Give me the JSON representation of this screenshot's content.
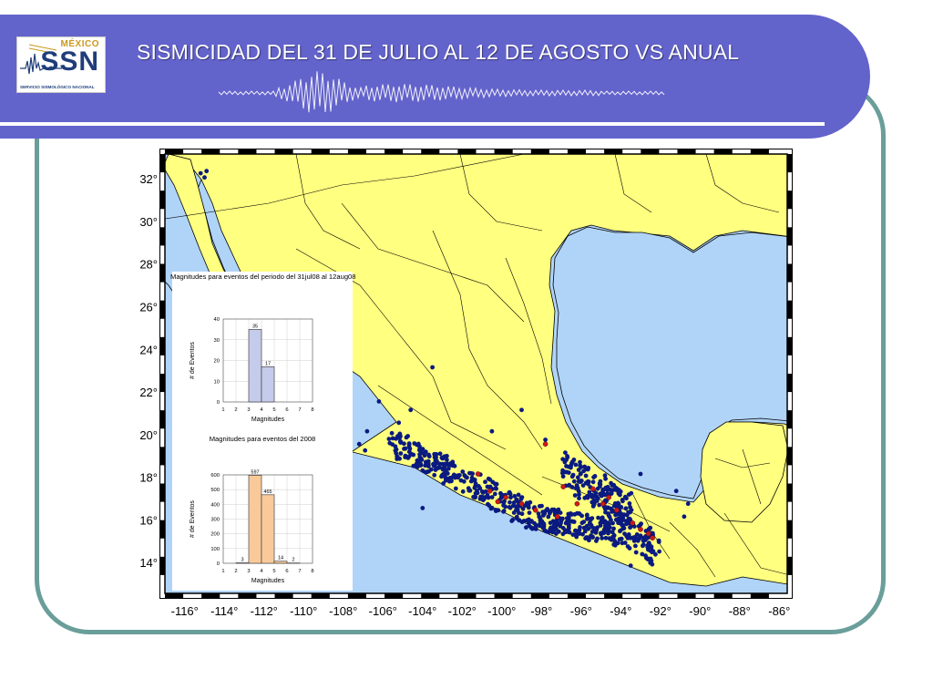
{
  "header": {
    "title": "SISMICIDAD DEL 31 DE JULIO AL 12 DE AGOSTO VS ANUAL",
    "logo": {
      "country": "MÉXICO",
      "acronym": "SSN",
      "name": "SERVICIO SISMOLÓGICO NACIONAL"
    },
    "colors": {
      "banner": "#6363cc",
      "frame": "#6a9e9a"
    }
  },
  "map": {
    "lon_range": [
      -116,
      -86
    ],
    "lat_range": [
      13,
      33
    ],
    "lat_labels": [
      "32°",
      "30°",
      "28°",
      "26°",
      "24°",
      "22°",
      "20°",
      "18°",
      "16°",
      "14°"
    ],
    "lon_labels": [
      "-116°",
      "-114°",
      "-112°",
      "-110°",
      "-108°",
      "-106°",
      "-104°",
      "-102°",
      "-100°",
      "-98°",
      "-96°",
      "-94°",
      "-92°",
      "-90°",
      "-88°",
      "-86°"
    ],
    "colors": {
      "land": "#ffff80",
      "ocean": "#b0d4f8",
      "annual_events": "#0a1a80",
      "period_events": "#cc1a1a"
    }
  },
  "chart_data": [
    {
      "type": "bar",
      "title": "Magnitudes para eventos del periodo del 31jul08 al 12aug08",
      "xlabel": "Magnitudes",
      "ylabel": "# de Eventos",
      "categories": [
        "3-4",
        "4-5"
      ],
      "values": [
        35,
        17
      ],
      "xlim": [
        1,
        8
      ],
      "ylim": [
        0,
        40
      ],
      "x_ticks": [
        "1",
        "2",
        "3",
        "4",
        "5",
        "6",
        "7",
        "8"
      ],
      "y_ticks": [
        "0",
        "10",
        "20",
        "30",
        "40"
      ],
      "bar_color": "#c5cbea"
    },
    {
      "type": "bar",
      "title": "Magnitudes para eventos del 2008",
      "xlabel": "Magnitudes",
      "ylabel": "# de Eventos",
      "categories": [
        "2-3",
        "3-4",
        "4-5",
        "5-6",
        "6-7"
      ],
      "values": [
        3,
        597,
        465,
        14,
        2
      ],
      "xlim": [
        1,
        8
      ],
      "ylim": [
        0,
        600
      ],
      "x_ticks": [
        "1",
        "2",
        "3",
        "4",
        "5",
        "6",
        "7",
        "8"
      ],
      "y_ticks": [
        "0",
        "100",
        "200",
        "300",
        "400",
        "500",
        "600"
      ],
      "bar_color": "#f9c99a"
    }
  ]
}
